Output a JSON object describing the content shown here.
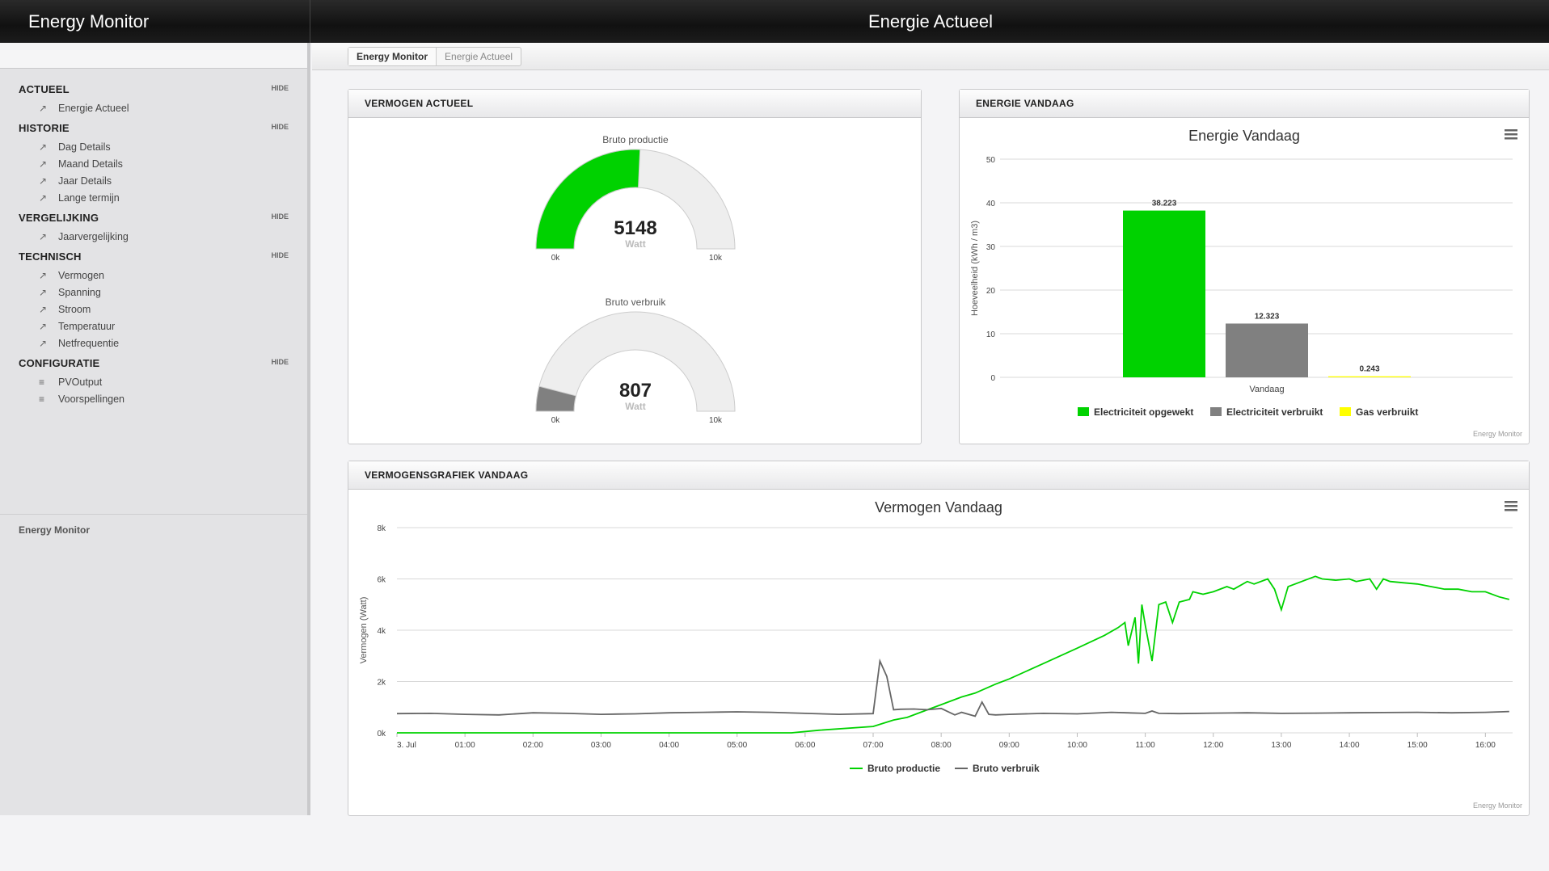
{
  "app": {
    "brand": "Energy Monitor",
    "page_title": "Energie Actueel"
  },
  "breadcrumb": {
    "home": "Energy Monitor",
    "current": "Energie Actueel"
  },
  "sidebar": {
    "hide_label": "HIDE",
    "sections": [
      {
        "title": "ACTUEEL",
        "items": [
          {
            "label": "Energie Actueel",
            "icon": "chart-icon"
          }
        ]
      },
      {
        "title": "HISTORIE",
        "items": [
          {
            "label": "Dag Details",
            "icon": "chart-icon"
          },
          {
            "label": "Maand Details",
            "icon": "chart-icon"
          },
          {
            "label": "Jaar Details",
            "icon": "chart-icon"
          },
          {
            "label": "Lange termijn",
            "icon": "chart-icon"
          }
        ]
      },
      {
        "title": "VERGELIJKING",
        "items": [
          {
            "label": "Jaarvergelijking",
            "icon": "chart-icon"
          }
        ]
      },
      {
        "title": "TECHNISCH",
        "items": [
          {
            "label": "Vermogen",
            "icon": "chart-icon"
          },
          {
            "label": "Spanning",
            "icon": "chart-icon"
          },
          {
            "label": "Stroom",
            "icon": "chart-icon"
          },
          {
            "label": "Temperatuur",
            "icon": "chart-icon"
          },
          {
            "label": "Netfrequentie",
            "icon": "chart-icon"
          }
        ]
      },
      {
        "title": "CONFIGURATIE",
        "items": [
          {
            "label": "PVOutput",
            "icon": "sliders-icon"
          },
          {
            "label": "Voorspellingen",
            "icon": "sliders-icon"
          }
        ]
      }
    ],
    "footer": "Energy Monitor"
  },
  "panels": {
    "vermogen_actueel": "VERMOGEN ACTUEEL",
    "energie_vandaag": "ENERGIE VANDAAG",
    "vermogensgrafiek": "VERMOGENSGRAFIEK VANDAAG"
  },
  "colors": {
    "green": "#00d200",
    "gray": "#808080",
    "yellow": "#ffff00",
    "gauge_bg": "#eeeeee"
  },
  "credits": "Energy Monitor",
  "chart_data": [
    {
      "type": "gauge",
      "title": "Bruto productie",
      "value": 5148,
      "unit": "Watt",
      "min": 0,
      "max": 10000,
      "min_label": "0k",
      "max_label": "10k",
      "color": "#00d200"
    },
    {
      "type": "gauge",
      "title": "Bruto verbruik",
      "value": 807,
      "unit": "Watt",
      "min": 0,
      "max": 10000,
      "min_label": "0k",
      "max_label": "10k",
      "color": "#808080"
    },
    {
      "type": "bar",
      "title": "Energie Vandaag",
      "categories": [
        "Vandaag"
      ],
      "ylabel": "Hoeveelheid (kWh / m3)",
      "ylim": [
        0,
        50
      ],
      "yticks": [
        0,
        10,
        20,
        30,
        40,
        50
      ],
      "legend": "bottom",
      "series": [
        {
          "name": "Electriciteit opgewekt",
          "values": [
            38.223
          ],
          "label": "38.223",
          "color": "#00d200"
        },
        {
          "name": "Electriciteit verbruikt",
          "values": [
            12.323
          ],
          "label": "12.323",
          "color": "#808080"
        },
        {
          "name": "Gas verbruikt",
          "values": [
            0.243
          ],
          "label": "0.243",
          "color": "#ffff00"
        }
      ]
    },
    {
      "type": "line",
      "title": "Vermogen Vandaag",
      "ylabel": "Vermogen (Watt)",
      "ylim": [
        0,
        8000
      ],
      "ytick_labels": [
        "0k",
        "2k",
        "4k",
        "6k",
        "8k"
      ],
      "yticks": [
        0,
        2000,
        4000,
        6000,
        8000
      ],
      "xlim": [
        0,
        16.4
      ],
      "xtick_labels": [
        "3. Jul",
        "01:00",
        "02:00",
        "03:00",
        "04:00",
        "05:00",
        "06:00",
        "07:00",
        "08:00",
        "09:00",
        "10:00",
        "11:00",
        "12:00",
        "13:00",
        "14:00",
        "15:00",
        "16:00"
      ],
      "legend": "bottom",
      "series": [
        {
          "name": "Bruto productie",
          "color": "#00d200",
          "x": [
            0,
            5.8,
            6.2,
            7.0,
            7.3,
            7.5,
            7.8,
            8.0,
            8.3,
            8.5,
            8.8,
            9.0,
            9.5,
            10.0,
            10.4,
            10.6,
            10.7,
            10.75,
            10.85,
            10.9,
            10.95,
            11.0,
            11.1,
            11.2,
            11.3,
            11.4,
            11.5,
            11.65,
            11.7,
            11.85,
            12.0,
            12.2,
            12.3,
            12.5,
            12.6,
            12.8,
            12.9,
            13.0,
            13.1,
            13.3,
            13.5,
            13.6,
            13.8,
            14.0,
            14.1,
            14.3,
            14.4,
            14.5,
            14.6,
            14.8,
            15.0,
            15.2,
            15.4,
            15.6,
            15.8,
            16.0,
            16.2,
            16.35
          ],
          "y": [
            0,
            0,
            100,
            250,
            500,
            600,
            900,
            1100,
            1400,
            1550,
            1900,
            2100,
            2700,
            3300,
            3800,
            4100,
            4300,
            3400,
            4500,
            2700,
            5000,
            4200,
            2800,
            5000,
            5100,
            4300,
            5100,
            5200,
            5500,
            5400,
            5500,
            5700,
            5600,
            5900,
            5800,
            6000,
            5600,
            4800,
            5700,
            5900,
            6100,
            6000,
            5950,
            6000,
            5900,
            6000,
            5600,
            6000,
            5900,
            5850,
            5800,
            5700,
            5600,
            5600,
            5500,
            5500,
            5300,
            5200
          ]
        },
        {
          "name": "Bruto verbruik",
          "color": "#666666",
          "x": [
            0,
            0.5,
            1.0,
            1.5,
            2.0,
            2.5,
            3.0,
            3.5,
            4.0,
            4.5,
            5.0,
            5.5,
            6.0,
            6.5,
            7.0,
            7.1,
            7.2,
            7.3,
            7.4,
            7.6,
            7.8,
            8.0,
            8.2,
            8.3,
            8.5,
            8.6,
            8.7,
            8.8,
            9.0,
            9.5,
            10.0,
            10.5,
            11.0,
            11.1,
            11.2,
            11.5,
            12.0,
            12.5,
            13.0,
            13.5,
            14.0,
            14.5,
            15.0,
            15.5,
            16.0,
            16.35
          ],
          "y": [
            750,
            760,
            720,
            700,
            780,
            760,
            720,
            740,
            780,
            800,
            820,
            800,
            760,
            720,
            750,
            2800,
            2200,
            900,
            920,
            930,
            900,
            950,
            700,
            800,
            650,
            1200,
            720,
            700,
            720,
            760,
            740,
            800,
            760,
            850,
            760,
            750,
            770,
            780,
            760,
            770,
            780,
            790,
            800,
            780,
            800,
            830
          ]
        }
      ]
    }
  ]
}
